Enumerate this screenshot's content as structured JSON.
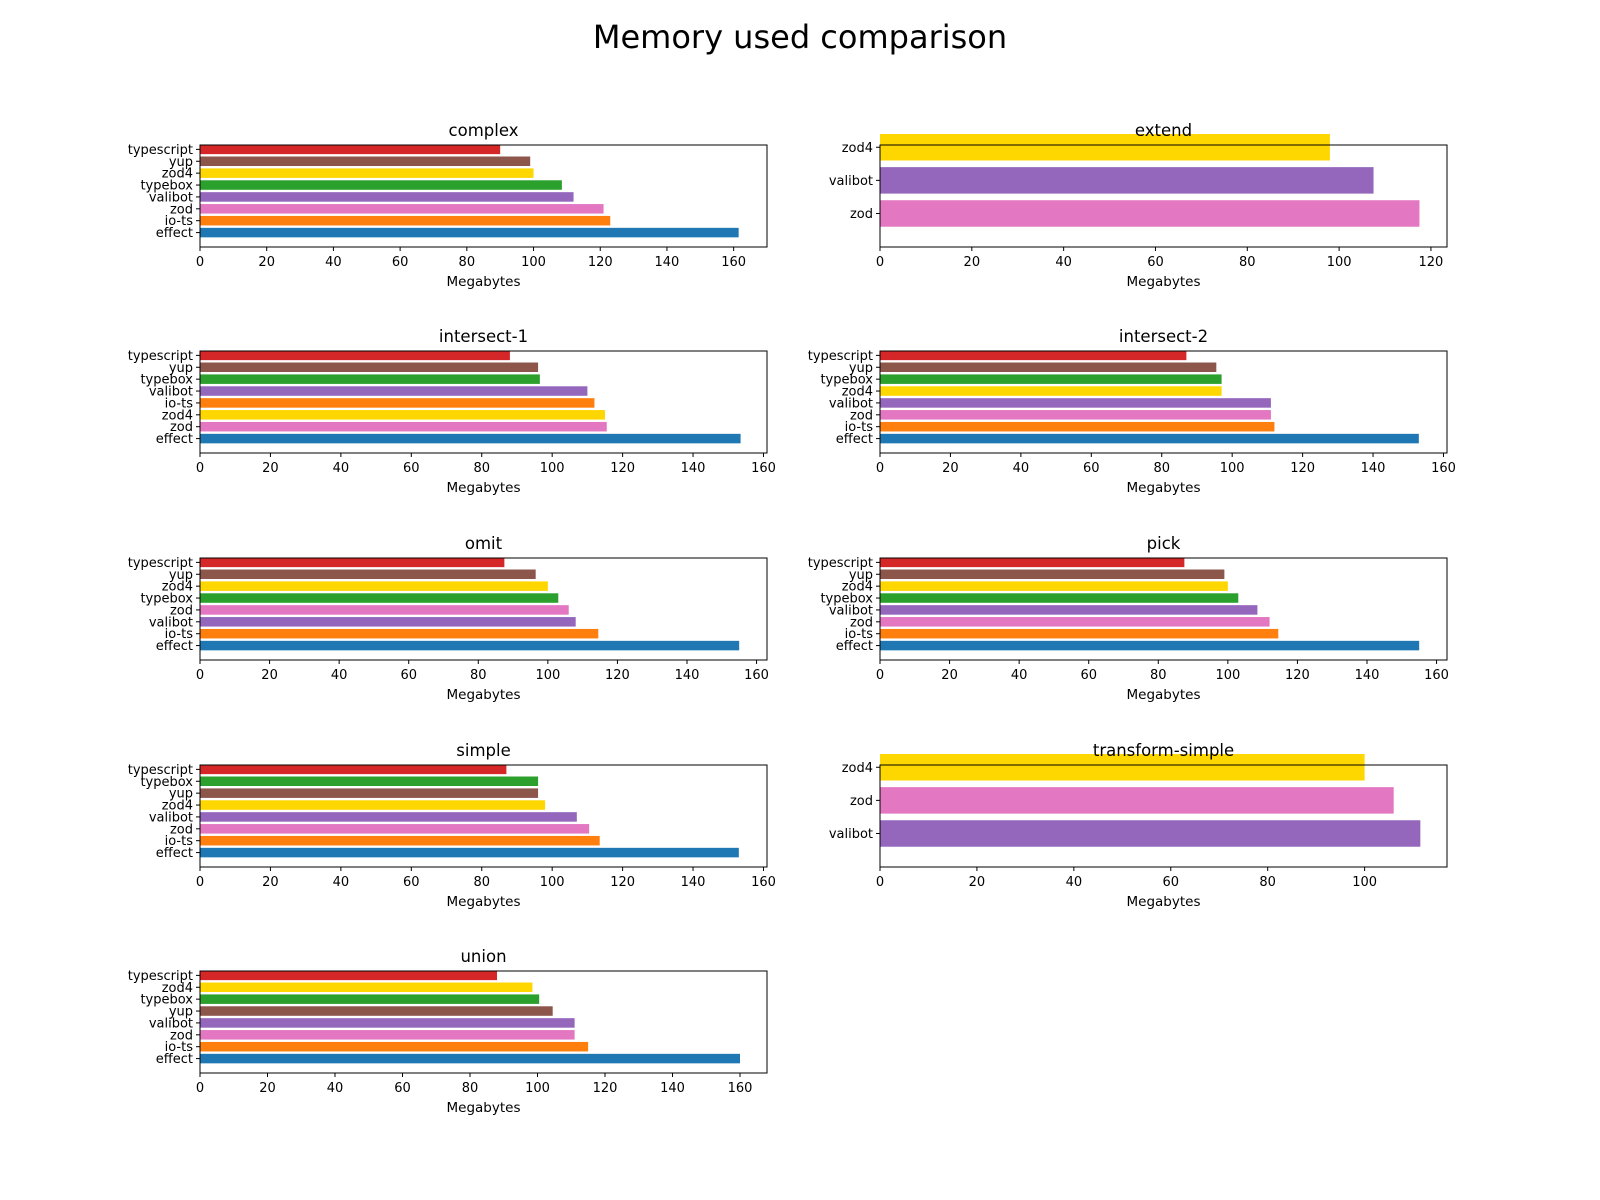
{
  "figure": {
    "title": "Memory used comparison"
  },
  "colors": {
    "effect": "#1f77b4",
    "io-ts": "#ff7f0e",
    "typebox": "#2ca02c",
    "typescript": "#d62728",
    "valibot": "#9467bd",
    "yup": "#8c564b",
    "zod": "#e377c2",
    "zod4": "#ffd700"
  },
  "chart_data": [
    {
      "type": "bar",
      "orientation": "horizontal",
      "title": "complex",
      "xlabel": "Megabytes",
      "ylabel": "",
      "xlim": [
        0,
        170
      ],
      "xticks": [
        0,
        20,
        40,
        60,
        80,
        100,
        120,
        140,
        160
      ],
      "grid": false,
      "categories": [
        "effect",
        "io-ts",
        "zod",
        "valibot",
        "typebox",
        "zod4",
        "yup",
        "typescript"
      ],
      "values": [
        161.5,
        123,
        121,
        112,
        108.5,
        100,
        99,
        90
      ]
    },
    {
      "type": "bar",
      "orientation": "horizontal",
      "title": "extend",
      "xlabel": "Megabytes",
      "ylabel": "",
      "xlim": [
        0,
        123.5
      ],
      "xticks": [
        0,
        20,
        40,
        60,
        80,
        100,
        120
      ],
      "grid": false,
      "categories": [
        "zod",
        "valibot",
        "zod4"
      ],
      "values": [
        117.5,
        107.5,
        98
      ]
    },
    {
      "type": "bar",
      "orientation": "horizontal",
      "title": "intersect-1",
      "xlabel": "Megabytes",
      "ylabel": "",
      "xlim": [
        0,
        161
      ],
      "xticks": [
        0,
        20,
        40,
        60,
        80,
        100,
        120,
        140,
        160
      ],
      "grid": false,
      "categories": [
        "effect",
        "zod",
        "zod4",
        "io-ts",
        "valibot",
        "typebox",
        "yup",
        "typescript"
      ],
      "values": [
        153.5,
        115.5,
        115,
        112,
        110,
        96.5,
        96,
        88
      ]
    },
    {
      "type": "bar",
      "orientation": "horizontal",
      "title": "intersect-2",
      "xlabel": "Megabytes",
      "ylabel": "",
      "xlim": [
        0,
        161
      ],
      "xticks": [
        0,
        20,
        40,
        60,
        80,
        100,
        120,
        140,
        160
      ],
      "grid": false,
      "categories": [
        "effect",
        "io-ts",
        "zod",
        "valibot",
        "zod4",
        "typebox",
        "yup",
        "typescript"
      ],
      "values": [
        153,
        112,
        111,
        111,
        97,
        97,
        95.5,
        87
      ]
    },
    {
      "type": "bar",
      "orientation": "horizontal",
      "title": "omit",
      "xlabel": "Megabytes",
      "ylabel": "",
      "xlim": [
        0,
        163
      ],
      "xticks": [
        0,
        20,
        40,
        60,
        80,
        100,
        120,
        140,
        160
      ],
      "grid": false,
      "categories": [
        "effect",
        "io-ts",
        "valibot",
        "zod",
        "typebox",
        "zod4",
        "yup",
        "typescript"
      ],
      "values": [
        155,
        114.5,
        108,
        106,
        103,
        100,
        96.5,
        87.5
      ]
    },
    {
      "type": "bar",
      "orientation": "horizontal",
      "title": "pick",
      "xlabel": "Megabytes",
      "ylabel": "",
      "xlim": [
        0,
        163
      ],
      "xticks": [
        0,
        20,
        40,
        60,
        80,
        100,
        120,
        140,
        160
      ],
      "grid": false,
      "categories": [
        "effect",
        "io-ts",
        "zod",
        "valibot",
        "typebox",
        "zod4",
        "yup",
        "typescript"
      ],
      "values": [
        155,
        114.5,
        112,
        108.5,
        103,
        100,
        99,
        87.5
      ]
    },
    {
      "type": "bar",
      "orientation": "horizontal",
      "title": "simple",
      "xlabel": "Megabytes",
      "ylabel": "",
      "xlim": [
        0,
        161
      ],
      "xticks": [
        0,
        20,
        40,
        60,
        80,
        100,
        120,
        140,
        160
      ],
      "grid": false,
      "categories": [
        "effect",
        "io-ts",
        "zod",
        "valibot",
        "zod4",
        "yup",
        "typebox",
        "typescript"
      ],
      "values": [
        153,
        113.5,
        110.5,
        107,
        98,
        96,
        96,
        87
      ]
    },
    {
      "type": "bar",
      "orientation": "horizontal",
      "title": "transform-simple",
      "xlabel": "Megabytes",
      "ylabel": "",
      "xlim": [
        0,
        117
      ],
      "xticks": [
        0,
        20,
        40,
        60,
        80,
        100
      ],
      "grid": false,
      "categories": [
        "valibot",
        "zod",
        "zod4"
      ],
      "values": [
        111.5,
        106,
        100
      ]
    },
    {
      "type": "bar",
      "orientation": "horizontal",
      "title": "union",
      "xlabel": "Megabytes",
      "ylabel": "",
      "xlim": [
        0,
        168
      ],
      "xticks": [
        0,
        20,
        40,
        60,
        80,
        100,
        120,
        140,
        160
      ],
      "grid": false,
      "categories": [
        "effect",
        "io-ts",
        "zod",
        "valibot",
        "yup",
        "typebox",
        "zod4",
        "typescript"
      ],
      "values": [
        160,
        115,
        111,
        111,
        104.5,
        100.5,
        98.5,
        88
      ]
    }
  ]
}
